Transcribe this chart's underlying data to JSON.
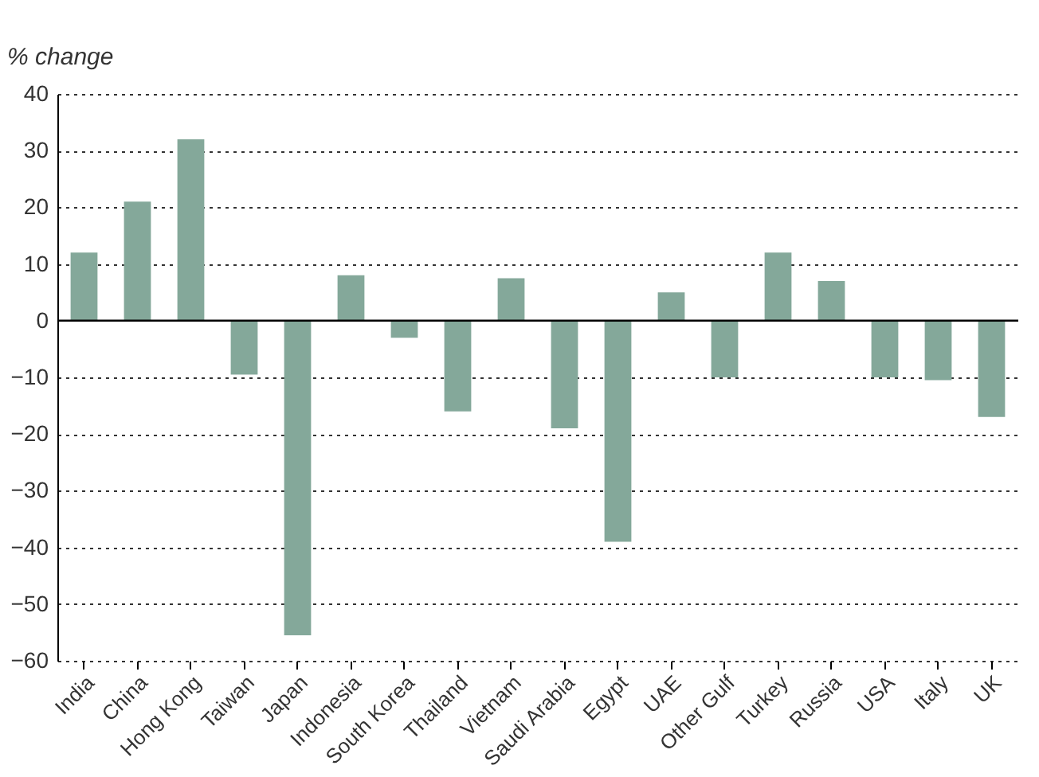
{
  "chart_data": {
    "type": "bar",
    "ylabel": "% change",
    "categories": [
      "India",
      "China",
      "Hong Kong",
      "Taiwan",
      "Japan",
      "Indonesia",
      "South Korea",
      "Thailand",
      "Vietnam",
      "Saudi Arabia",
      "Egypt",
      "UAE",
      "Other Gulf",
      "Turkey",
      "Russia",
      "USA",
      "Italy",
      "UK"
    ],
    "values": [
      12,
      21,
      32,
      -9.5,
      -55.5,
      8,
      -3,
      -16,
      7.5,
      -19,
      -39,
      5,
      -10,
      12,
      7,
      -10,
      -10.5,
      -17
    ],
    "color": "#84a89a",
    "ylim": [
      -60,
      40
    ],
    "yticks": [
      -60,
      -50,
      -40,
      -30,
      -20,
      -10,
      0,
      10,
      20,
      30,
      40
    ],
    "grid": "y",
    "ref_lines": [
      {
        "axis": "y",
        "value": 0,
        "color": "#000000"
      }
    ]
  }
}
